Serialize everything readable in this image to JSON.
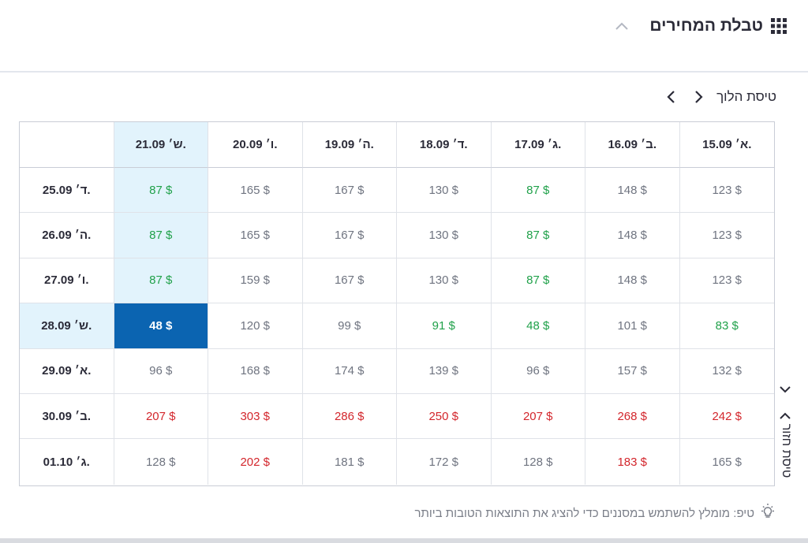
{
  "header": {
    "title": "טבלת המחירים",
    "grid_icon": "grid-icon",
    "collapse_icon": "chevron-up-icon"
  },
  "outbound": {
    "label": "טיסת הלוך",
    "next_icon": "chevron-right-icon",
    "prev_icon": "chevron-left-icon"
  },
  "return_flight": {
    "label": "טיסת חזור",
    "up_icon": "chevron-up-icon",
    "down_icon": "chevron-down-icon"
  },
  "table": {
    "columns": [
      "א׳ 15.09.",
      "ב׳ 16.09.",
      "ג׳ 17.09.",
      "ד׳ 18.09.",
      "ה׳ 19.09.",
      "ו׳ 20.09.",
      "ש׳ 21.09."
    ],
    "rows": [
      {
        "label": "ד׳ 25.09.",
        "prices": [
          "123 $",
          "148 $",
          "87 $",
          "130 $",
          "167 $",
          "165 $",
          "87 $"
        ]
      },
      {
        "label": "ה׳ 26.09.",
        "prices": [
          "123 $",
          "148 $",
          "87 $",
          "130 $",
          "167 $",
          "165 $",
          "87 $"
        ]
      },
      {
        "label": "ו׳ 27.09.",
        "prices": [
          "123 $",
          "148 $",
          "87 $",
          "130 $",
          "167 $",
          "159 $",
          "87 $"
        ]
      },
      {
        "label": "ש׳ 28.09.",
        "prices": [
          "83 $",
          "101 $",
          "48 $",
          "91 $",
          "99 $",
          "120 $",
          "48 $"
        ]
      },
      {
        "label": "א׳ 29.09.",
        "prices": [
          "132 $",
          "157 $",
          "96 $",
          "139 $",
          "174 $",
          "168 $",
          "96 $"
        ]
      },
      {
        "label": "ב׳ 30.09.",
        "prices": [
          "242 $",
          "268 $",
          "207 $",
          "250 $",
          "286 $",
          "303 $",
          "207 $"
        ]
      },
      {
        "label": "ג׳ 01.10.",
        "prices": [
          "165 $",
          "183 $",
          "128 $",
          "172 $",
          "181 $",
          "202 $",
          "128 $"
        ]
      }
    ],
    "price_levels": [
      [
        "normal",
        "normal",
        "green",
        "normal",
        "normal",
        "normal",
        "green"
      ],
      [
        "normal",
        "normal",
        "green",
        "normal",
        "normal",
        "normal",
        "green"
      ],
      [
        "normal",
        "normal",
        "green",
        "normal",
        "normal",
        "normal",
        "green"
      ],
      [
        "green",
        "normal",
        "green",
        "green",
        "normal",
        "normal",
        "selected"
      ],
      [
        "normal",
        "normal",
        "normal",
        "normal",
        "normal",
        "normal",
        "normal"
      ],
      [
        "red",
        "red",
        "red",
        "red",
        "red",
        "red",
        "red"
      ],
      [
        "normal",
        "red",
        "normal",
        "normal",
        "normal",
        "red",
        "normal"
      ]
    ],
    "selected": {
      "outbound": "ש׳ 21.09.",
      "return": "ש׳ 28.09."
    }
  },
  "tip": {
    "text": "טיפ: מומלץ להשתמש במסננים כדי להציג את התוצאות הטובות ביותר",
    "icon": "lightbulb-icon"
  },
  "colors": {
    "selected": "#0b64b1",
    "highlight": "#e2f3fc",
    "green": "#20a14a",
    "red": "#d3262c",
    "normal": "#6f7480"
  }
}
